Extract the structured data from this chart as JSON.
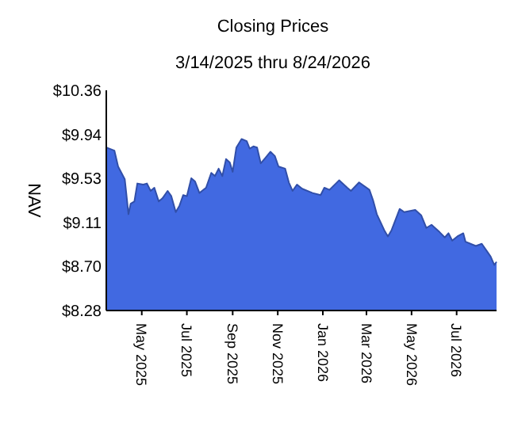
{
  "chart_data": {
    "type": "area",
    "title": "Closing Prices",
    "subtitle": "3/14/2025 thru 8/24/2026",
    "ylabel": "NAV",
    "x": [
      "2025-03-14",
      "2025-03-25",
      "2025-03-30",
      "2025-04-08",
      "2025-04-10",
      "2025-04-13",
      "2025-04-16",
      "2025-04-21",
      "2025-04-25",
      "2025-05-03",
      "2025-05-08",
      "2025-05-13",
      "2025-05-18",
      "2025-05-24",
      "2025-05-29",
      "2025-06-05",
      "2025-06-10",
      "2025-06-16",
      "2025-06-21",
      "2025-06-26",
      "2025-07-01",
      "2025-07-07",
      "2025-07-12",
      "2025-07-18",
      "2025-07-27",
      "2025-08-03",
      "2025-08-08",
      "2025-08-13",
      "2025-08-18",
      "2025-08-23",
      "2025-08-28",
      "2025-09-01",
      "2025-09-06",
      "2025-09-13",
      "2025-09-20",
      "2025-09-24",
      "2025-09-29",
      "2025-10-04",
      "2025-10-09",
      "2025-10-15",
      "2025-10-22",
      "2025-10-28",
      "2025-11-02",
      "2025-11-11",
      "2025-11-16",
      "2025-11-21",
      "2025-11-27",
      "2025-12-04",
      "2025-12-18",
      "2025-12-29",
      "2026-01-03",
      "2026-01-10",
      "2026-01-23",
      "2026-02-03",
      "2026-02-08",
      "2026-02-19",
      "2026-03-05",
      "2026-03-10",
      "2026-03-15",
      "2026-03-25",
      "2026-03-30",
      "2026-04-04",
      "2026-04-15",
      "2026-04-21",
      "2026-05-06",
      "2026-05-14",
      "2026-05-21",
      "2026-05-28",
      "2026-06-08",
      "2026-06-15",
      "2026-06-20",
      "2026-06-25",
      "2026-07-02",
      "2026-07-10",
      "2026-07-13",
      "2026-07-27",
      "2026-08-04",
      "2026-08-11",
      "2026-08-16",
      "2026-08-21",
      "2026-08-24"
    ],
    "series": [
      {
        "color": "#4169e1",
        "values": [
          9.82,
          9.79,
          9.64,
          9.52,
          9.39,
          9.19,
          9.29,
          9.31,
          9.48,
          9.47,
          9.48,
          9.41,
          9.44,
          9.31,
          9.34,
          9.41,
          9.36,
          9.21,
          9.27,
          9.37,
          9.36,
          9.53,
          9.5,
          9.39,
          9.44,
          9.58,
          9.55,
          9.62,
          9.55,
          9.71,
          9.68,
          9.59,
          9.82,
          9.9,
          9.88,
          9.81,
          9.83,
          9.82,
          9.67,
          9.72,
          9.78,
          9.74,
          9.64,
          9.62,
          9.49,
          9.41,
          9.47,
          9.43,
          9.39,
          9.37,
          9.44,
          9.42,
          9.51,
          9.44,
          9.41,
          9.49,
          9.42,
          9.32,
          9.19,
          9.04,
          8.98,
          9.04,
          9.24,
          9.21,
          9.23,
          9.18,
          9.06,
          9.09,
          9.02,
          8.97,
          9.01,
          8.94,
          8.98,
          9.01,
          8.93,
          8.89,
          8.91,
          8.84,
          8.79,
          8.71,
          8.74
        ]
      }
    ],
    "xlim": [
      "2025-03-14",
      "2026-08-24"
    ],
    "xticks": [
      {
        "value": "2025-05-01",
        "label": "May 2025"
      },
      {
        "value": "2025-07-01",
        "label": "Jul 2025"
      },
      {
        "value": "2025-09-01",
        "label": "Sep 2025"
      },
      {
        "value": "2025-11-01",
        "label": "Nov 2025"
      },
      {
        "value": "2026-01-01",
        "label": "Jan 2026"
      },
      {
        "value": "2026-03-01",
        "label": "Mar 2026"
      },
      {
        "value": "2026-05-01",
        "label": "May 2026"
      },
      {
        "value": "2026-07-01",
        "label": "Jul 2026"
      }
    ],
    "ylim": [
      8.28,
      10.36
    ],
    "yticks": [
      {
        "value": 8.28,
        "label": "$8.28"
      },
      {
        "value": 8.7,
        "label": "$8.70"
      },
      {
        "value": 9.11,
        "label": "$9.11"
      },
      {
        "value": 9.53,
        "label": "$9.53"
      },
      {
        "value": 9.94,
        "label": "$9.94"
      },
      {
        "value": 10.36,
        "label": "$10.36"
      }
    ]
  }
}
